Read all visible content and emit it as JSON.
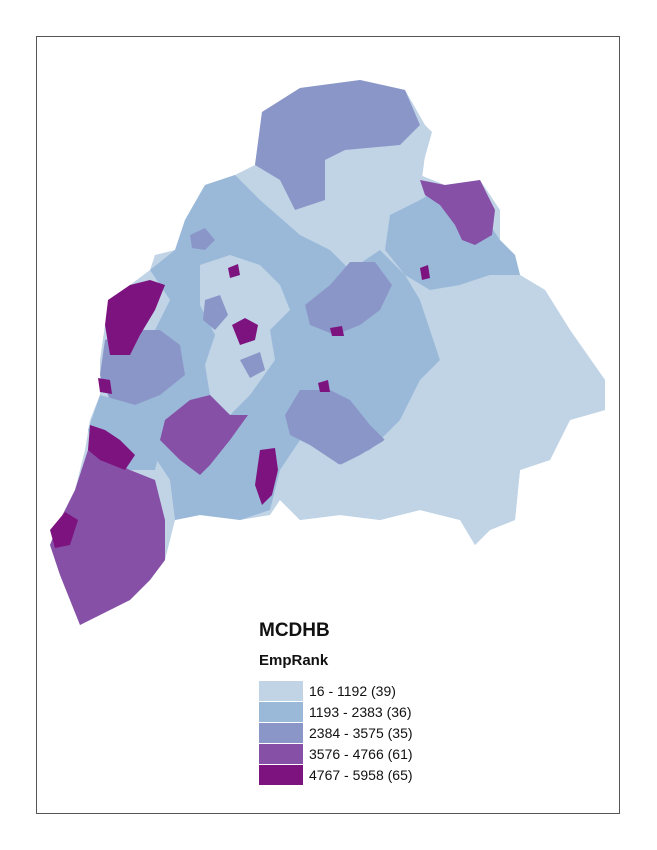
{
  "legend": {
    "title": "MCDHB",
    "field": "EmpRank",
    "classes": [
      {
        "label": "16 - 1192 (39)",
        "color": "#c0d4e6"
      },
      {
        "label": "1193 - 2383 (36)",
        "color": "#9ab9d9"
      },
      {
        "label": "2384 - 3575 (35)",
        "color": "#8b96c8"
      },
      {
        "label": "3576 - 4766 (61)",
        "color": "#8650a6"
      },
      {
        "label": "4767 - 5958 (65)",
        "color": "#7d137f"
      }
    ]
  }
}
